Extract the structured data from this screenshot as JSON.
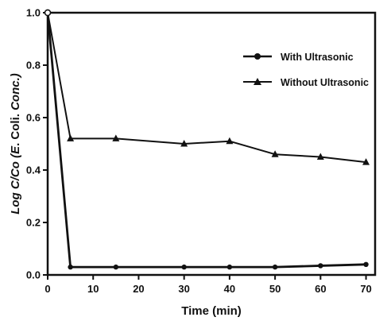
{
  "chart_data": {
    "type": "line",
    "title": "",
    "xlabel": "Time (min)",
    "ylabel": "Log C/Co (E. Coli. Conc.)",
    "ylabel_parts": {
      "a": "Log C/Co (",
      "b": "E",
      "c": ". Coli. ",
      "d": "Conc.",
      "e": ")"
    },
    "xlim": [
      0,
      72
    ],
    "ylim": [
      0.0,
      1.0
    ],
    "xticks": [
      0,
      10,
      20,
      30,
      40,
      50,
      60,
      70
    ],
    "yticks": [
      0.0,
      0.2,
      0.4,
      0.6,
      0.8,
      1.0
    ],
    "ytick_labels": [
      "0.0",
      "0.2",
      "0.4",
      "0.6",
      "0.8",
      "1.0"
    ],
    "grid": false,
    "legend_position": "top-right",
    "series": [
      {
        "name": "With Ultrasonic",
        "marker": "circle",
        "x": [
          0,
          5,
          15,
          30,
          40,
          50,
          60,
          70
        ],
        "y": [
          1.0,
          0.03,
          0.03,
          0.03,
          0.03,
          0.03,
          0.035,
          0.04
        ]
      },
      {
        "name": "Without Ultrasonic",
        "marker": "triangle",
        "x": [
          0,
          5,
          15,
          30,
          40,
          50,
          60,
          70
        ],
        "y": [
          1.0,
          0.52,
          0.52,
          0.5,
          0.51,
          0.46,
          0.45,
          0.43
        ]
      }
    ]
  },
  "colors": {
    "line": "#111111",
    "background": "#ffffff"
  }
}
